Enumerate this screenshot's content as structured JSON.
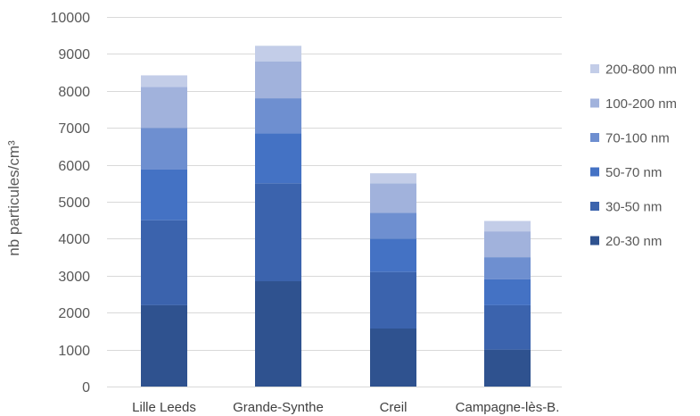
{
  "chart_data": {
    "type": "bar",
    "stacked": true,
    "title": "",
    "xlabel": "",
    "ylabel": "nb particules/cm³",
    "ylim": [
      0,
      10000
    ],
    "yticks": [
      0,
      1000,
      2000,
      3000,
      4000,
      5000,
      6000,
      7000,
      8000,
      9000,
      10000
    ],
    "ytick_labels": [
      "0",
      "1000",
      "2000",
      "3000",
      "4000",
      "5000",
      "6000",
      "7000",
      "8000",
      "9000",
      "10000"
    ],
    "grid": true,
    "legend_position": "right",
    "categories": [
      "Lille Leeds",
      "Grande-Synthe",
      "Creil",
      "Campagne-lès-B."
    ],
    "series": [
      {
        "name": "20-30 nm",
        "color": "#2f528f",
        "values": [
          2200,
          2850,
          1570,
          1000
        ]
      },
      {
        "name": "30-50 nm",
        "color": "#3b63ad",
        "values": [
          2300,
          2650,
          1530,
          1200
        ]
      },
      {
        "name": "50-70 nm",
        "color": "#4472c4",
        "values": [
          1370,
          1350,
          900,
          700
        ]
      },
      {
        "name": "70-100 nm",
        "color": "#6e8fd0",
        "values": [
          1130,
          950,
          700,
          600
        ]
      },
      {
        "name": "100-200 nm",
        "color": "#a1b2dc",
        "values": [
          1110,
          1000,
          800,
          700
        ]
      },
      {
        "name": "200-800 nm",
        "color": "#c3cde8",
        "values": [
          310,
          420,
          270,
          280
        ]
      }
    ]
  }
}
